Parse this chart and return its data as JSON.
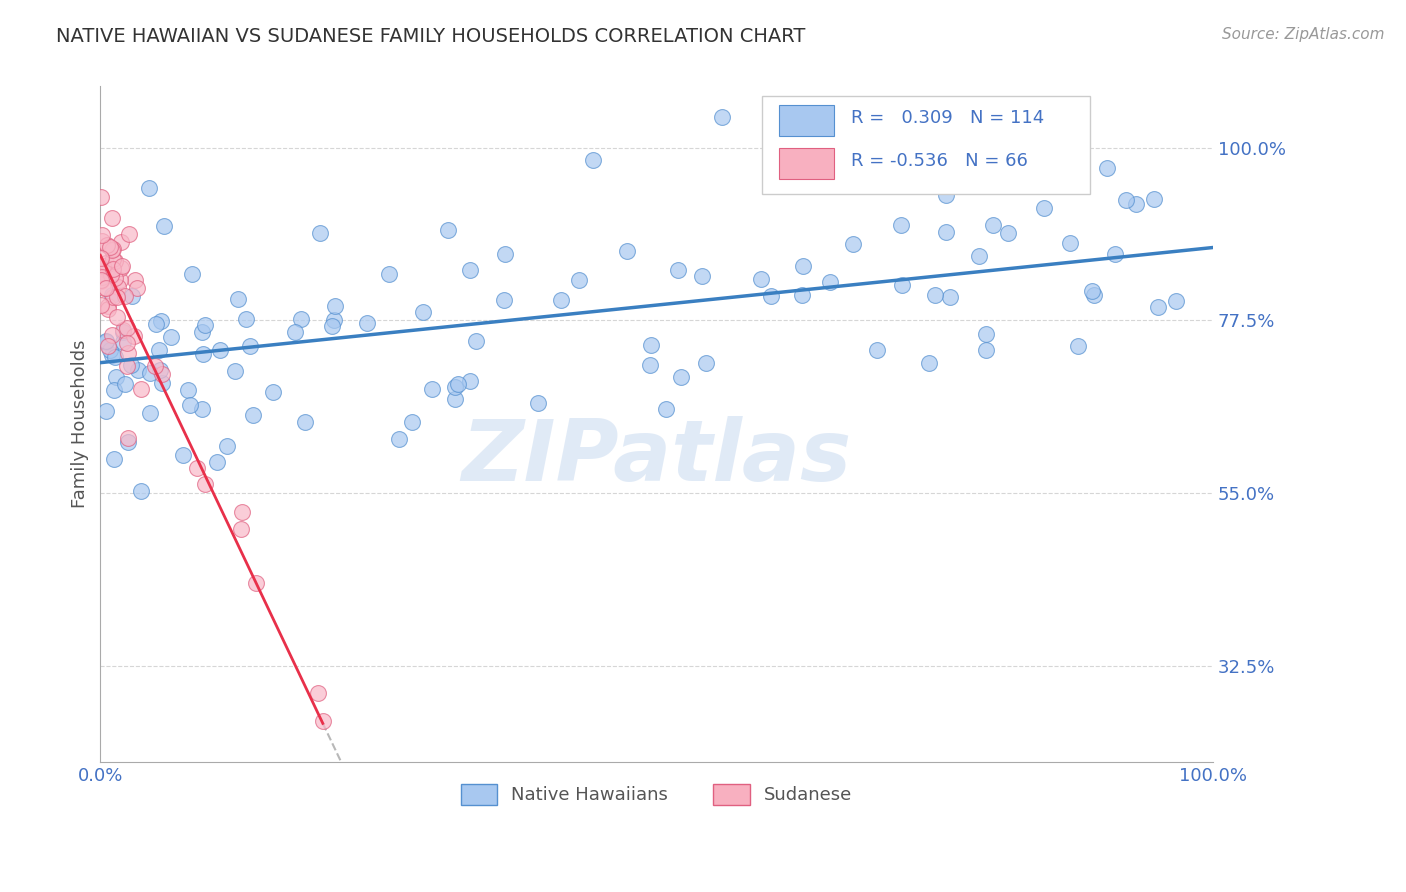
{
  "title": "NATIVE HAWAIIAN VS SUDANESE FAMILY HOUSEHOLDS CORRELATION CHART",
  "source_text": "Source: ZipAtlas.com",
  "ylabel": "Family Households",
  "xlim": [
    0.0,
    100.0
  ],
  "ylim": [
    20.0,
    108.0
  ],
  "yticks": [
    32.5,
    55.0,
    77.5,
    100.0
  ],
  "xtick_labels": [
    "0.0%",
    "100.0%"
  ],
  "ytick_labels": [
    "32.5%",
    "55.0%",
    "77.5%",
    "100.0%"
  ],
  "background_color": "#ffffff",
  "grid_color": "#cccccc",
  "blue_color": "#a8c8f0",
  "pink_color": "#f8b8c8",
  "blue_edge_color": "#5590d0",
  "pink_edge_color": "#e06080",
  "blue_line_color": "#3a7fc1",
  "pink_line_color": "#e8304a",
  "axis_tick_color": "#4472c4",
  "title_color": "#333333",
  "R_blue": 0.309,
  "N_blue": 114,
  "R_pink": -0.536,
  "N_pink": 66,
  "watermark": "ZIPatlas",
  "legend_label_blue": "Native Hawaiians",
  "legend_label_pink": "Sudanese",
  "blue_trend_start_y": 72.0,
  "blue_trend_end_y": 87.0,
  "pink_trend_start_y": 86.0,
  "pink_trend_end_x": 20.0,
  "pink_trend_end_y": 25.0,
  "pink_dash_end_x": 50.0
}
